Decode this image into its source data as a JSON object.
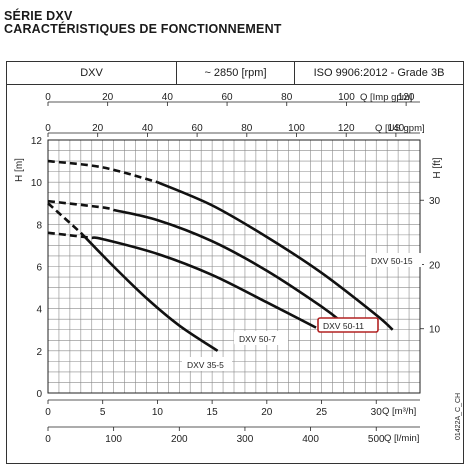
{
  "header": {
    "series_title": "SÉRIE DXV",
    "subtitle": "CARACTÉRISTIQUES DE FONCTIONNEMENT"
  },
  "info_bar": {
    "model": "DXV",
    "speed": "~ 2850 [rpm]",
    "standard": "ISO 9906:2012 - Grade 3B"
  },
  "chart_data": {
    "type": "line",
    "title": "",
    "xlabel": "Q [m³/h]",
    "ylabel": "H [m]",
    "xlim": [
      0,
      34
    ],
    "ylim": [
      0,
      12
    ],
    "grid": true,
    "x_ticks": [
      0,
      5,
      10,
      15,
      20,
      25,
      30
    ],
    "y_ticks": [
      0,
      2,
      4,
      6,
      8,
      10,
      12
    ],
    "secondary_axes": {
      "top_imp_gpm": {
        "label": "Q [Imp gpm]",
        "ticks": [
          0,
          20,
          40,
          60,
          80,
          100,
          120
        ]
      },
      "top_us_gpm": {
        "label": "Q [US gpm]",
        "ticks": [
          0,
          20,
          40,
          60,
          80,
          100,
          120,
          140
        ]
      },
      "bottom_l_min": {
        "label": "Q [l/min]",
        "ticks": [
          0,
          100,
          200,
          300,
          400,
          500
        ]
      },
      "right_ft": {
        "label": "H [ft]",
        "ticks": [
          10,
          20,
          30
        ]
      }
    },
    "series": [
      {
        "name": "DXV 50-15",
        "x": [
          0,
          5,
          10,
          15,
          20,
          25,
          30,
          31.5
        ],
        "y": [
          11.0,
          10.7,
          10.0,
          8.9,
          7.4,
          5.7,
          3.7,
          3.0
        ],
        "dashed_until": 10
      },
      {
        "name": "DXV 50-11",
        "x": [
          0,
          5,
          10,
          15,
          20,
          25,
          27
        ],
        "y": [
          9.1,
          8.8,
          8.2,
          7.2,
          5.8,
          4.1,
          3.3
        ],
        "dashed_until": 6
      },
      {
        "name": "DXV 50-7",
        "x": [
          0,
          5,
          10,
          15,
          20,
          24.5
        ],
        "y": [
          7.6,
          7.3,
          6.6,
          5.6,
          4.3,
          3.1
        ],
        "dashed_until": 4
      },
      {
        "name": "DXV 35-5",
        "x": [
          0,
          3,
          6,
          9,
          12,
          15.5
        ],
        "y": [
          9.0,
          7.6,
          6.0,
          4.5,
          3.2,
          2.0
        ],
        "dashed_until": 3
      }
    ],
    "labels": [
      {
        "series": "DXV 50-15",
        "text": "DXV 50-15",
        "boxed": false
      },
      {
        "series": "DXV 50-11",
        "text": "DXV 50-11",
        "boxed": true,
        "box_color": "#b22222"
      },
      {
        "series": "DXV 50-7",
        "text": "DXV 50-7",
        "boxed": false
      },
      {
        "series": "DXV 35-5",
        "text": "DXV 35-5",
        "boxed": false
      }
    ],
    "side_code": "01422A_C_CH"
  }
}
